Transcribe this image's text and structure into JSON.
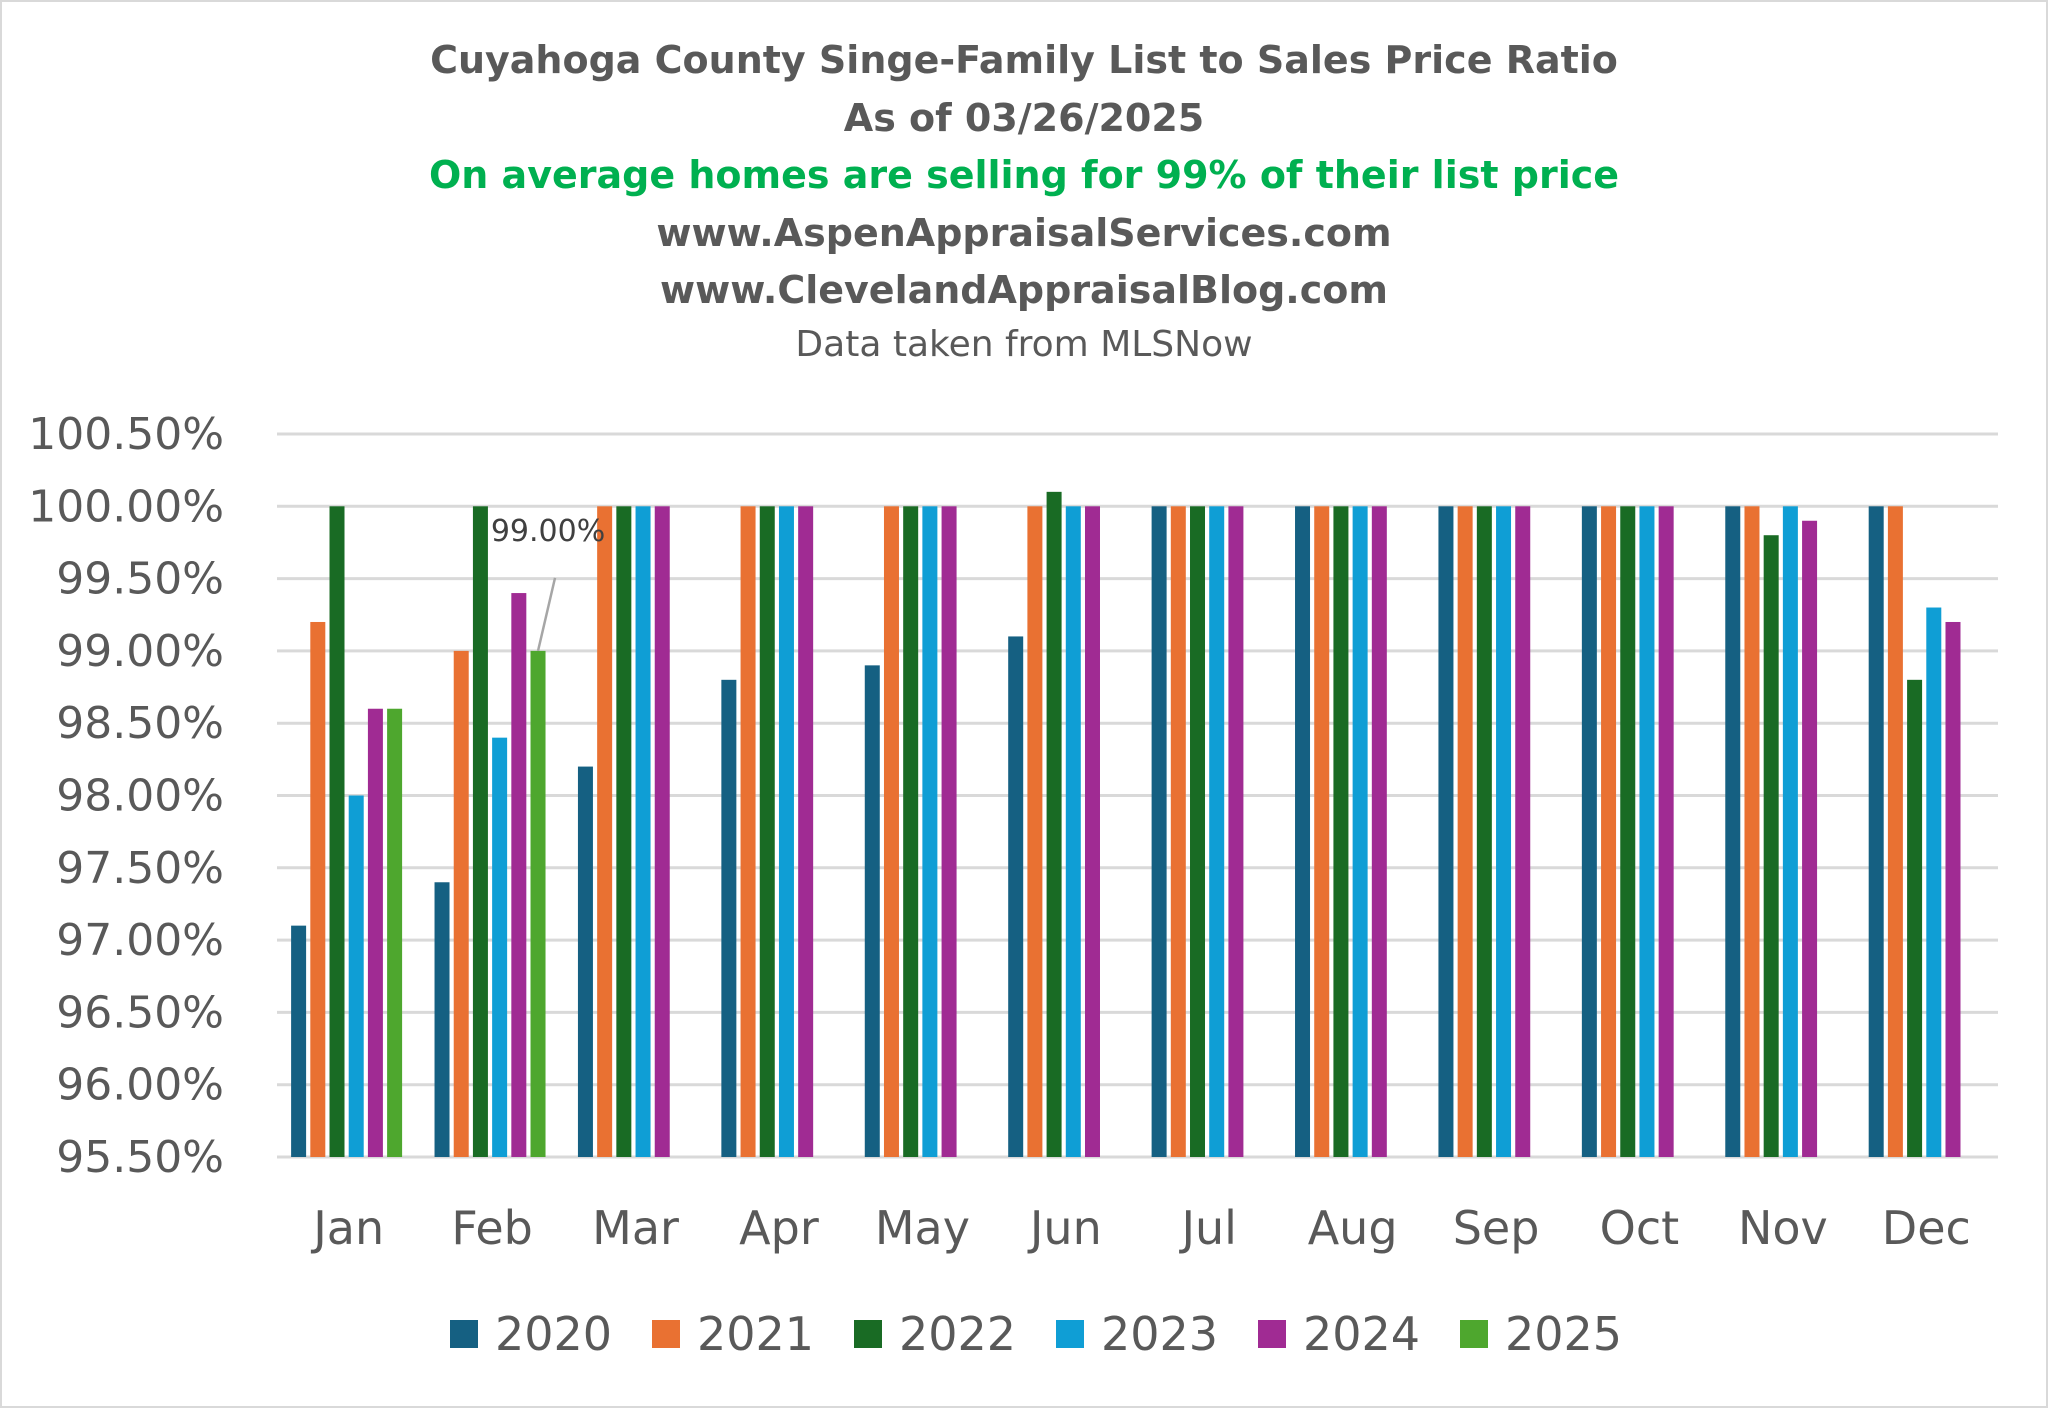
{
  "chart_data": {
    "type": "bar",
    "title": "Cuyahoga County Singe-Family List to Sales Price Ratio",
    "subtitles": [
      "As of 03/26/2025",
      "On average homes are selling for 99% of their list price",
      "www.AspenAppraisalServices.com",
      "www.ClevelandAppraisalBlog.com",
      "Data taken from MLSNow"
    ],
    "highlight_color": "#00b050",
    "categories": [
      "Jan",
      "Feb",
      "Mar",
      "Apr",
      "May",
      "Jun",
      "Jul",
      "Aug",
      "Sep",
      "Oct",
      "Nov",
      "Dec"
    ],
    "ylim": [
      95.5,
      100.5
    ],
    "yticks": [
      "100.50%",
      "100.00%",
      "99.50%",
      "99.00%",
      "98.50%",
      "98.00%",
      "97.50%",
      "97.00%",
      "96.50%",
      "96.00%",
      "95.50%"
    ],
    "grid": true,
    "legend_position": "bottom",
    "series": [
      {
        "name": "2020",
        "color": "#156082",
        "values": [
          97.1,
          97.4,
          98.2,
          98.8,
          98.9,
          99.1,
          100,
          100,
          100,
          100,
          100,
          100
        ]
      },
      {
        "name": "2021",
        "color": "#e97132",
        "values": [
          99.2,
          99.0,
          100,
          100,
          100,
          100,
          100,
          100,
          100,
          100,
          100,
          100
        ]
      },
      {
        "name": "2022",
        "color": "#196b24",
        "values": [
          100,
          100,
          100,
          100,
          100,
          100.1,
          100,
          100,
          100,
          100,
          99.8,
          98.8
        ]
      },
      {
        "name": "2023",
        "color": "#0f9ed5",
        "values": [
          98.0,
          98.4,
          100,
          100,
          100,
          100,
          100,
          100,
          100,
          100,
          100,
          99.3
        ]
      },
      {
        "name": "2024",
        "color": "#a02b93",
        "values": [
          98.6,
          99.4,
          100,
          100,
          100,
          100,
          100,
          100,
          100,
          100,
          99.9,
          99.2
        ]
      },
      {
        "name": "2025",
        "color": "#4ea72e",
        "values": [
          98.6,
          99.0,
          null,
          null,
          null,
          null,
          null,
          null,
          null,
          null,
          null,
          null
        ]
      }
    ],
    "data_labels": [
      {
        "series": "2025",
        "category": "Feb",
        "text": "99.00%"
      }
    ]
  }
}
